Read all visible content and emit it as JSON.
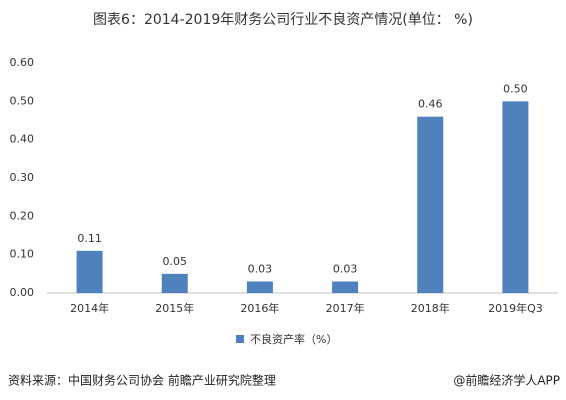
{
  "chart_data": {
    "type": "bar",
    "title": "图表6：2014-2019年财务公司行业不良资产情况(单位：  %)",
    "categories": [
      "2014年",
      "2015年",
      "2016年",
      "2017年",
      "2018年",
      "2019年Q3"
    ],
    "series": [
      {
        "name": "不良资产率（%）",
        "color": "#4f81bd",
        "values": [
          0.11,
          0.05,
          0.03,
          0.03,
          0.46,
          0.5
        ],
        "value_labels": [
          "0.11",
          "0.05",
          "0.03",
          "0.03",
          "0.46",
          "0.50"
        ]
      }
    ],
    "ylim": [
      0,
      0.6
    ],
    "yticks": [
      {
        "value": 0,
        "label": "0.00"
      },
      {
        "value": 0.1,
        "label": "0.10"
      },
      {
        "value": 0.2,
        "label": "0.20"
      },
      {
        "value": 0.3,
        "label": "0.30"
      },
      {
        "value": 0.4,
        "label": "0.40"
      },
      {
        "value": 0.5,
        "label": "0.50"
      },
      {
        "value": 0.6,
        "label": "0.60"
      }
    ],
    "grid": false,
    "source": "资料来源：中国财务公司协会 前瞻产业研究院整理",
    "brand": "@前瞻经济学人APP"
  }
}
